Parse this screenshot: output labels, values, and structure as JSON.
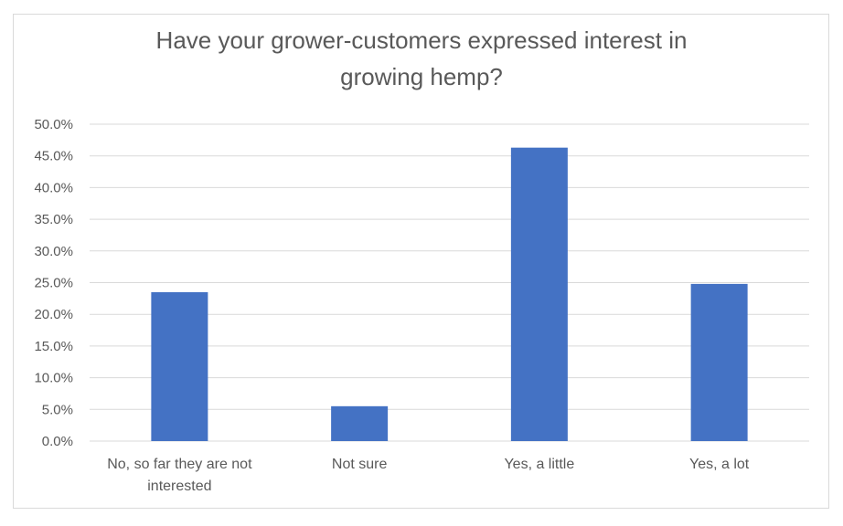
{
  "chart_data": {
    "type": "bar",
    "title": "Have your grower-customers expressed interest in growing hemp?",
    "categories": [
      "No, so far they are not interested",
      "Not sure",
      "Yes, a little",
      "Yes, a lot"
    ],
    "values": [
      23.5,
      5.5,
      46.3,
      24.8
    ],
    "ylim": [
      0,
      50
    ],
    "yticks": [
      "0.0%",
      "5.0%",
      "10.0%",
      "15.0%",
      "20.0%",
      "25.0%",
      "30.0%",
      "35.0%",
      "40.0%",
      "45.0%",
      "50.0%"
    ],
    "y_tick_values": [
      0,
      5,
      10,
      15,
      20,
      25,
      30,
      35,
      40,
      45,
      50
    ],
    "grid": true,
    "legend": "none",
    "bar_color": "#4472C4",
    "grid_color": "#d9d9d9",
    "text_color": "#595959"
  }
}
